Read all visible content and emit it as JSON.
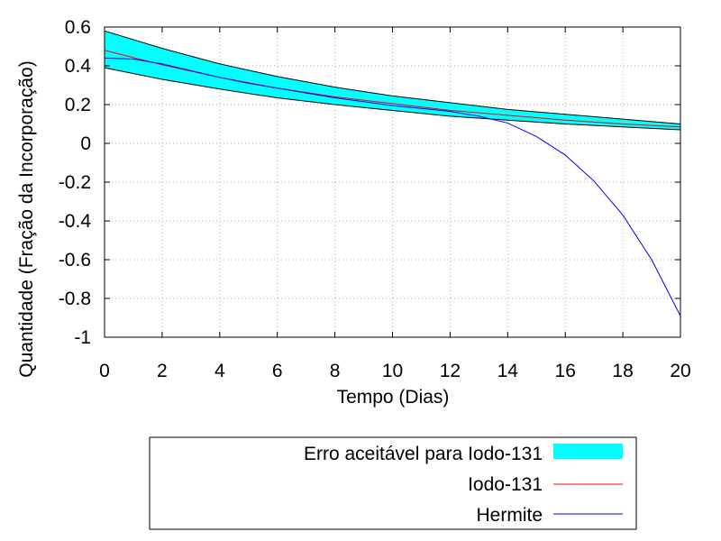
{
  "chart_data": {
    "type": "line",
    "xlabel": "Tempo (Dias)",
    "ylabel": "Quantidade (Fração da Incorporação)",
    "xlim": [
      0,
      20
    ],
    "ylim": [
      -1,
      0.6
    ],
    "x_ticks": [
      "0",
      "2",
      "4",
      "6",
      "8",
      "10",
      "12",
      "14",
      "16",
      "18",
      "20"
    ],
    "y_ticks": [
      "0.6",
      "0.4",
      "0.2",
      "0",
      "-0.2",
      "-0.4",
      "-0.6",
      "-0.8",
      "-1"
    ],
    "grid": true,
    "legend_position": "bottom",
    "colors": {
      "band": "#00ffff",
      "iodo": "#ff0000",
      "hermite": "#0000ff"
    },
    "series": [
      {
        "name": "Erro aceitável para Iodo-131",
        "kind": "band",
        "x": [
          0,
          2,
          4,
          6,
          8,
          10,
          12,
          14,
          16,
          18,
          20
        ],
        "lower": [
          0.39,
          0.33,
          0.28,
          0.235,
          0.2,
          0.17,
          0.14,
          0.12,
          0.1,
          0.085,
          0.07
        ],
        "upper": [
          0.58,
          0.49,
          0.41,
          0.345,
          0.29,
          0.245,
          0.21,
          0.175,
          0.15,
          0.125,
          0.1
        ]
      },
      {
        "name": "Iodo-131",
        "kind": "line",
        "x": [
          0,
          2,
          4,
          6,
          8,
          10,
          12,
          14,
          16,
          18,
          20
        ],
        "y": [
          0.48,
          0.405,
          0.34,
          0.285,
          0.24,
          0.205,
          0.17,
          0.145,
          0.12,
          0.1,
          0.085
        ]
      },
      {
        "name": "Hermite",
        "kind": "line",
        "x": [
          0,
          1,
          2,
          3,
          4,
          5,
          6,
          7,
          8,
          9,
          10,
          11,
          12,
          13,
          14,
          15,
          16,
          17,
          18,
          19,
          20
        ],
        "y": [
          0.44,
          0.435,
          0.41,
          0.375,
          0.34,
          0.31,
          0.285,
          0.26,
          0.235,
          0.215,
          0.195,
          0.18,
          0.165,
          0.14,
          0.105,
          0.035,
          -0.06,
          -0.195,
          -0.37,
          -0.6,
          -0.89
        ]
      }
    ]
  }
}
